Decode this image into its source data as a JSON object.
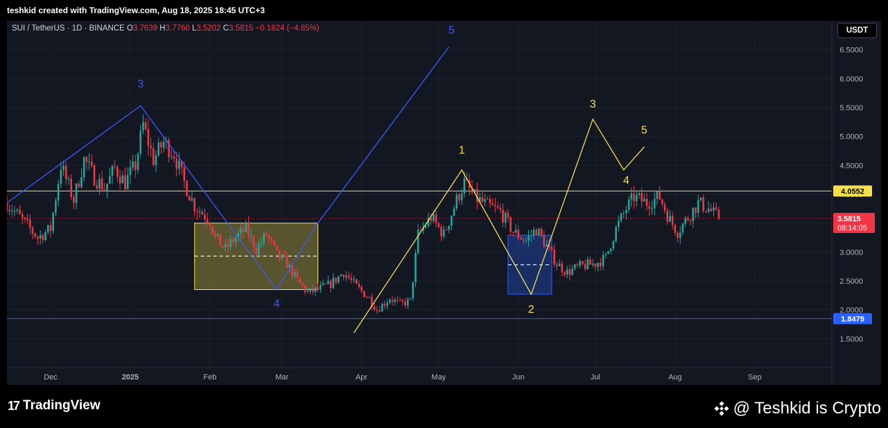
{
  "attribution": "teshkid created with TradingView.com, Aug 18, 2025 18:45 UTC+3",
  "legend": {
    "symbol": "SUI / TetherUS · 1D · BINANCE",
    "o_label": "O",
    "o_value": "3.7639",
    "h_label": "H",
    "h_value": "3.7760",
    "l_label": "L",
    "l_value": "3.5202",
    "c_label": "C",
    "c_value": "3.5815",
    "change": "−0.1824 (−4.85%)"
  },
  "currency_button": "USDT",
  "brand": {
    "logo_text": "TradingView",
    "logo_mark": "17"
  },
  "watermark": "@ Teshkid is Crypto",
  "colors": {
    "up": "#26a69a",
    "down": "#f23645",
    "yellow": "#f5e14b",
    "blue": "#2962ff",
    "background": "#131722"
  },
  "chart_data": {
    "type": "candlestick",
    "symbol": "SUI / TetherUS",
    "interval": "1D",
    "ylim": [
      1.0,
      7.0
    ],
    "y_ticks": [
      1.5,
      2.0,
      2.5,
      3.0,
      3.5,
      4.0,
      4.5,
      5.0,
      5.5,
      6.0,
      6.5
    ],
    "y_tick_labels": [
      "1.5000",
      "2.0000",
      "2.5000",
      "3.0000",
      "3.5000",
      "4.0000",
      "4.5000",
      "5.0000",
      "5.5000",
      "6.0000",
      "6.5000"
    ],
    "x_range": [
      "2024-11-14",
      "2025-10-01"
    ],
    "x_ticks": [
      {
        "date": "2024-12-01",
        "label": "Dec",
        "bold": false
      },
      {
        "date": "2025-01-01",
        "label": "2025",
        "bold": true
      },
      {
        "date": "2025-02-01",
        "label": "Feb",
        "bold": false
      },
      {
        "date": "2025-03-01",
        "label": "Mar",
        "bold": false
      },
      {
        "date": "2025-04-01",
        "label": "Apr",
        "bold": false
      },
      {
        "date": "2025-05-01",
        "label": "May",
        "bold": false
      },
      {
        "date": "2025-06-01",
        "label": "Jun",
        "bold": false
      },
      {
        "date": "2025-07-01",
        "label": "Jul",
        "bold": false
      },
      {
        "date": "2025-08-01",
        "label": "Aug",
        "bold": false
      },
      {
        "date": "2025-09-01",
        "label": "Sep",
        "bold": false
      }
    ],
    "price_path": [
      [
        "2024-11-14",
        3.85
      ],
      [
        "2024-11-20",
        3.55
      ],
      [
        "2024-11-26",
        3.25
      ],
      [
        "2024-12-01",
        3.4
      ],
      [
        "2024-12-05",
        4.5
      ],
      [
        "2024-12-10",
        3.9
      ],
      [
        "2024-12-14",
        4.6
      ],
      [
        "2024-12-18",
        4.3
      ],
      [
        "2024-12-22",
        4.1
      ],
      [
        "2024-12-26",
        4.45
      ],
      [
        "2024-12-30",
        4.2
      ],
      [
        "2025-01-03",
        4.5
      ],
      [
        "2025-01-06",
        5.2
      ],
      [
        "2025-01-10",
        4.6
      ],
      [
        "2025-01-14",
        4.9
      ],
      [
        "2025-01-18",
        4.7
      ],
      [
        "2025-01-22",
        4.2
      ],
      [
        "2025-01-26",
        3.8
      ],
      [
        "2025-02-01",
        3.55
      ],
      [
        "2025-02-03",
        3.25
      ],
      [
        "2025-02-07",
        3.05
      ],
      [
        "2025-02-11",
        3.25
      ],
      [
        "2025-02-15",
        3.4
      ],
      [
        "2025-02-19",
        3.05
      ],
      [
        "2025-02-23",
        3.3
      ],
      [
        "2025-02-27",
        2.95
      ],
      [
        "2025-03-03",
        2.8
      ],
      [
        "2025-03-07",
        2.5
      ],
      [
        "2025-03-11",
        2.3
      ],
      [
        "2025-03-15",
        2.35
      ],
      [
        "2025-03-20",
        2.45
      ],
      [
        "2025-03-25",
        2.65
      ],
      [
        "2025-03-30",
        2.4
      ],
      [
        "2025-04-04",
        2.2
      ],
      [
        "2025-04-07",
        2.0
      ],
      [
        "2025-04-12",
        2.2
      ],
      [
        "2025-04-16",
        2.1
      ],
      [
        "2025-04-20",
        2.15
      ],
      [
        "2025-04-23",
        3.3
      ],
      [
        "2025-04-28",
        3.6
      ],
      [
        "2025-05-03",
        3.3
      ],
      [
        "2025-05-08",
        3.9
      ],
      [
        "2025-05-11",
        4.2
      ],
      [
        "2025-05-15",
        3.95
      ],
      [
        "2025-05-20",
        3.8
      ],
      [
        "2025-05-25",
        3.7
      ],
      [
        "2025-05-30",
        3.35
      ],
      [
        "2025-06-04",
        3.2
      ],
      [
        "2025-06-08",
        3.4
      ],
      [
        "2025-06-12",
        3.1
      ],
      [
        "2025-06-16",
        2.8
      ],
      [
        "2025-06-20",
        2.65
      ],
      [
        "2025-06-25",
        2.75
      ],
      [
        "2025-07-01",
        2.8
      ],
      [
        "2025-07-05",
        2.9
      ],
      [
        "2025-07-09",
        3.4
      ],
      [
        "2025-07-13",
        3.75
      ],
      [
        "2025-07-16",
        3.95
      ],
      [
        "2025-07-21",
        3.85
      ],
      [
        "2025-07-26",
        3.95
      ],
      [
        "2025-07-30",
        3.55
      ],
      [
        "2025-08-02",
        3.35
      ],
      [
        "2025-08-06",
        3.6
      ],
      [
        "2025-08-10",
        3.85
      ],
      [
        "2025-08-14",
        3.75
      ],
      [
        "2025-08-18",
        3.58
      ]
    ],
    "last_close": 3.5815,
    "horizontal_lines": [
      {
        "price": 4.0552,
        "label": "4.0552",
        "color": "#f5e14b"
      },
      {
        "price": 1.8479,
        "label": "1.8479",
        "color": "#2962ff"
      }
    ],
    "current_price_tag": {
      "price_label": "3.5815",
      "countdown": "08:14:05",
      "color": "#f23645"
    },
    "rectangles": [
      {
        "x0": "2025-01-26",
        "x1": "2025-03-15",
        "y0": 2.35,
        "y1": 3.5,
        "color": "#f5e14b",
        "mid": 2.93
      },
      {
        "x0": "2025-05-28",
        "x1": "2025-06-14",
        "y0": 2.27,
        "y1": 3.29,
        "color": "#2962ff",
        "mid": 2.78
      }
    ],
    "wave_blue": {
      "points": [
        [
          "2024-11-14",
          3.85
        ],
        [
          "2025-01-05",
          5.53
        ],
        [
          "2025-02-27",
          2.35
        ],
        [
          "2025-03-15",
          3.5
        ],
        [
          "2025-05-05",
          6.55
        ]
      ],
      "labels": [
        {
          "text": "3",
          "date": "2025-01-05",
          "price": 5.85
        },
        {
          "text": "4",
          "date": "2025-02-27",
          "price": 2.05
        },
        {
          "text": "5",
          "date": "2025-05-06",
          "price": 6.78
        }
      ]
    },
    "wave_yellow": {
      "points": [
        [
          "2025-03-29",
          1.6
        ],
        [
          "2025-05-10",
          4.42
        ],
        [
          "2025-06-06",
          2.27
        ],
        [
          "2025-06-30",
          5.3
        ],
        [
          "2025-07-12",
          4.42
        ],
        [
          "2025-07-20",
          4.82
        ]
      ],
      "labels": [
        {
          "text": "1",
          "date": "2025-05-10",
          "price": 4.7
        },
        {
          "text": "2",
          "date": "2025-06-06",
          "price": 1.95
        },
        {
          "text": "3",
          "date": "2025-06-30",
          "price": 5.5
        },
        {
          "text": "4",
          "date": "2025-07-13",
          "price": 4.18
        },
        {
          "text": "5",
          "date": "2025-07-20",
          "price": 5.05
        }
      ]
    }
  }
}
